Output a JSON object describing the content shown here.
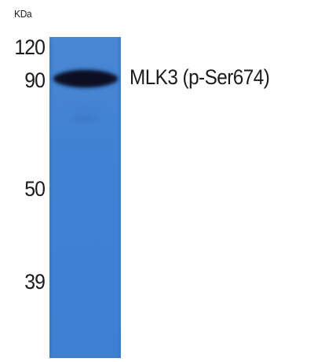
{
  "axis": {
    "unit": "KDa",
    "markers": [
      "120",
      "90",
      "50",
      "39"
    ]
  },
  "blot": {
    "band_label": "MLK3 (p-Ser674)",
    "lane_color": "#3f82d3",
    "band_color": "#0c1424"
  }
}
